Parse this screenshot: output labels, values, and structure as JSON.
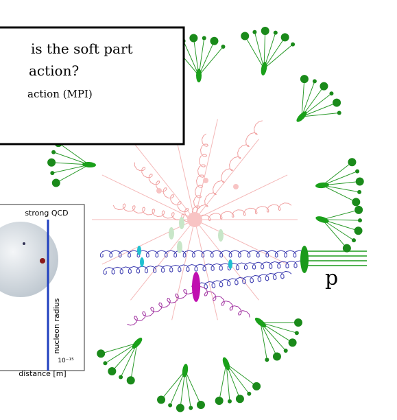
{
  "question": {
    "line1": "is the soft part",
    "line2": "action?",
    "line3": "action (MPI)"
  },
  "inset": {
    "label": "strong QCD",
    "radius_label": "nucleon radius",
    "tick": "10⁻¹⁵",
    "xlabel": "distance [m]"
  },
  "proton_label": "p"
}
